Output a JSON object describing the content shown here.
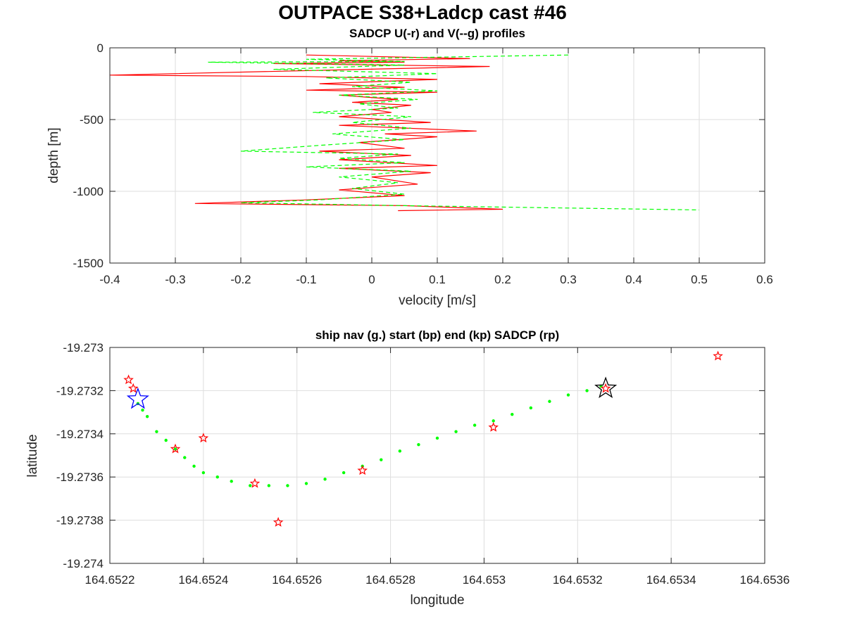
{
  "figure_title": "OUTPACE S38+Ladcp cast #46",
  "colors": {
    "u_series": "#ff0000",
    "v_series": "#00ff00",
    "ship_nav": "#00ff00",
    "start_marker": "#0000ff",
    "end_marker": "#000000",
    "sadcp_points": "#ff0000",
    "grid": "#dedede",
    "axes": "#262626"
  },
  "chart_data": [
    {
      "type": "line",
      "title": "SADCP U(-r) and V(--g) profiles",
      "xlabel": "velocity [m/s]",
      "ylabel": "depth [m]",
      "xlim": [
        -0.4,
        0.6
      ],
      "ylim": [
        -1500,
        0
      ],
      "xticks": [
        "-0.4",
        "-0.3",
        "-0.2",
        "-0.1",
        "0",
        "0.1",
        "0.2",
        "0.3",
        "0.4",
        "0.5",
        "0.6"
      ],
      "yticks": [
        "0",
        "-500",
        "-1000",
        "-1500"
      ],
      "grid": true,
      "series": [
        {
          "name": "U",
          "style": "solid",
          "color": "#ff0000",
          "points": [
            [
              -0.1,
              -50
            ],
            [
              0.15,
              -75
            ],
            [
              -0.05,
              -90
            ],
            [
              0.05,
              -100
            ],
            [
              -0.15,
              -110
            ],
            [
              0.18,
              -130
            ],
            [
              -0.4,
              -190
            ],
            [
              -0.1,
              -200
            ],
            [
              0.1,
              -220
            ],
            [
              -0.08,
              -250
            ],
            [
              0.05,
              -275
            ],
            [
              -0.1,
              -295
            ],
            [
              0.1,
              -310
            ],
            [
              -0.05,
              -330
            ],
            [
              0.04,
              -360
            ],
            [
              -0.03,
              -380
            ],
            [
              0.06,
              -400
            ],
            [
              0,
              -430
            ],
            [
              0.03,
              -450
            ],
            [
              -0.05,
              -480
            ],
            [
              0.09,
              -520
            ],
            [
              -0.05,
              -540
            ],
            [
              0.16,
              -580
            ],
            [
              0.02,
              -600
            ],
            [
              0.1,
              -620
            ],
            [
              -0.02,
              -660
            ],
            [
              0.05,
              -700
            ],
            [
              -0.08,
              -720
            ],
            [
              0.06,
              -750
            ],
            [
              -0.05,
              -780
            ],
            [
              0.1,
              -820
            ],
            [
              -0.05,
              -840
            ],
            [
              0.09,
              -870
            ],
            [
              0,
              -900
            ],
            [
              0.07,
              -950
            ],
            [
              -0.05,
              -990
            ],
            [
              0.05,
              -1030
            ],
            [
              -0.1,
              -1060
            ],
            [
              -0.27,
              -1085
            ],
            [
              0.05,
              -1100
            ],
            [
              0.2,
              -1125
            ],
            [
              0.04,
              -1135
            ]
          ]
        },
        {
          "name": "V",
          "style": "dashed",
          "color": "#00ff00",
          "points": [
            [
              0.3,
              -50
            ],
            [
              0.1,
              -65
            ],
            [
              -0.1,
              -80
            ],
            [
              0.05,
              -95
            ],
            [
              -0.25,
              -100
            ],
            [
              0.05,
              -120
            ],
            [
              -0.15,
              -150
            ],
            [
              0.1,
              -180
            ],
            [
              -0.07,
              -210
            ],
            [
              0.06,
              -240
            ],
            [
              -0.03,
              -270
            ],
            [
              0.1,
              -300
            ],
            [
              -0.05,
              -330
            ],
            [
              0.07,
              -360
            ],
            [
              -0.02,
              -390
            ],
            [
              0.04,
              -420
            ],
            [
              -0.09,
              -450
            ],
            [
              0.06,
              -480
            ],
            [
              -0.03,
              -520
            ],
            [
              0.06,
              -560
            ],
            [
              -0.06,
              -600
            ],
            [
              0.05,
              -640
            ],
            [
              -0.08,
              -680
            ],
            [
              -0.2,
              -720
            ],
            [
              0.04,
              -740
            ],
            [
              -0.05,
              -770
            ],
            [
              0.05,
              -800
            ],
            [
              -0.1,
              -830
            ],
            [
              0.06,
              -860
            ],
            [
              -0.05,
              -900
            ],
            [
              0.04,
              -940
            ],
            [
              -0.03,
              -980
            ],
            [
              0.05,
              -1020
            ],
            [
              -0.08,
              -1060
            ],
            [
              -0.2,
              -1080
            ],
            [
              0.05,
              -1100
            ],
            [
              0.5,
              -1130
            ]
          ]
        }
      ]
    },
    {
      "type": "scatter",
      "title": "ship nav (g.) start (bp) end (kp) SADCP (rp)",
      "xlabel": "longitude",
      "ylabel": "latitude",
      "xlim": [
        164.6522,
        164.6536
      ],
      "ylim": [
        -19.274,
        -19.273
      ],
      "xticks": [
        "164.6522",
        "164.6524",
        "164.6526",
        "164.6528",
        "164.653",
        "164.6532",
        "164.6534",
        "164.6536"
      ],
      "yticks": [
        "-19.273",
        "-19.2732",
        "-19.2734",
        "-19.2736",
        "-19.2738",
        "-19.274"
      ],
      "grid": true,
      "series": [
        {
          "name": "ship nav",
          "marker": "dot",
          "color": "#00ff00",
          "lon": [
            164.65226,
            164.65227,
            164.65228,
            164.6523,
            164.65232,
            164.65234,
            164.65236,
            164.65238,
            164.6524,
            164.65243,
            164.65246,
            164.6525,
            164.65254,
            164.65258,
            164.65262,
            164.65266,
            164.6527,
            164.65274,
            164.65278,
            164.65282,
            164.65286,
            164.6529,
            164.65294,
            164.65298,
            164.65302,
            164.65306,
            164.6531,
            164.65314,
            164.65318,
            164.65322,
            164.65325
          ],
          "lat": [
            -19.27326,
            -19.27329,
            -19.27332,
            -19.27339,
            -19.27343,
            -19.27347,
            -19.27351,
            -19.27355,
            -19.27358,
            -19.2736,
            -19.27362,
            -19.27364,
            -19.27364,
            -19.27364,
            -19.27363,
            -19.27361,
            -19.27358,
            -19.27355,
            -19.27352,
            -19.27348,
            -19.27345,
            -19.27342,
            -19.27339,
            -19.27336,
            -19.27334,
            -19.27331,
            -19.27328,
            -19.27325,
            -19.27322,
            -19.2732,
            -19.27318
          ]
        },
        {
          "name": "start",
          "marker": "star",
          "color": "#0000ff",
          "lon": [
            164.65226
          ],
          "lat": [
            -19.27324
          ]
        },
        {
          "name": "end",
          "marker": "star",
          "color": "#000000",
          "lon": [
            164.65326
          ],
          "lat": [
            -19.27319
          ]
        },
        {
          "name": "SADCP",
          "marker": "star",
          "color": "#ff0000",
          "lon": [
            164.65224,
            164.65225,
            164.65234,
            164.6524,
            164.65251,
            164.65256,
            164.65274,
            164.65302,
            164.65326,
            164.6535
          ],
          "lat": [
            -19.27315,
            -19.27319,
            -19.27347,
            -19.27342,
            -19.27363,
            -19.27381,
            -19.27357,
            -19.27337,
            -19.27319,
            -19.27304
          ]
        }
      ]
    }
  ]
}
